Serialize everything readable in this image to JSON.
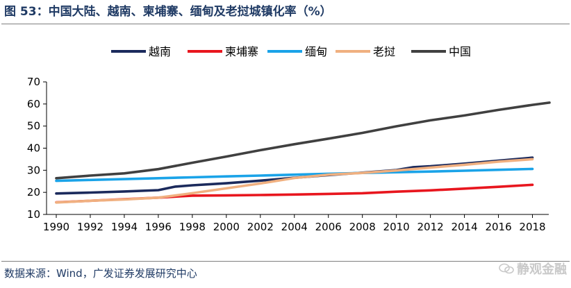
{
  "header": {
    "title": "图 53：中国大陆、越南、柬埔寨、缅甸及老挝城镇化率（%）"
  },
  "footer": {
    "source": "数据来源：Wind，广发证券发展研究中心",
    "watermark": "静观金融"
  },
  "chart_data": {
    "type": "line",
    "title": "",
    "xlabel": "",
    "ylabel": "",
    "ylim": [
      10,
      70
    ],
    "xlim": [
      1990,
      2019
    ],
    "yticks": [
      10,
      20,
      30,
      40,
      50,
      60,
      70
    ],
    "xticks": [
      1990,
      1992,
      1994,
      1996,
      1998,
      2000,
      2002,
      2004,
      2006,
      2008,
      2010,
      2012,
      2014,
      2016,
      2018
    ],
    "grid": false,
    "legend_position": "top",
    "series": [
      {
        "name": "越南",
        "color": "#1b2a5c",
        "x": [
          1990,
          1992,
          1994,
          1996,
          1997,
          1998,
          2000,
          2002,
          2004,
          2006,
          2008,
          2010,
          2011,
          2012,
          2014,
          2016,
          2018
        ],
        "y": [
          19.5,
          19.9,
          20.4,
          21.0,
          22.6,
          23.2,
          24.1,
          25.3,
          26.6,
          27.8,
          28.9,
          30.1,
          31.4,
          31.8,
          33.0,
          34.3,
          35.7
        ]
      },
      {
        "name": "柬埔寨",
        "color": "#e8161e",
        "x": [
          1990,
          1992,
          1994,
          1996,
          1998,
          2000,
          2002,
          2004,
          2006,
          2008,
          2010,
          2012,
          2014,
          2016,
          2018
        ],
        "y": [
          15.5,
          16.2,
          16.9,
          17.6,
          18.5,
          18.6,
          18.8,
          19.0,
          19.3,
          19.6,
          20.3,
          20.9,
          21.7,
          22.5,
          23.4
        ]
      },
      {
        "name": "缅甸",
        "color": "#1aa3e8",
        "x": [
          1990,
          1992,
          1994,
          1996,
          1998,
          2000,
          2002,
          2004,
          2006,
          2008,
          2010,
          2012,
          2014,
          2016,
          2018
        ],
        "y": [
          25.2,
          25.6,
          26.0,
          26.4,
          26.8,
          27.2,
          27.6,
          28.0,
          28.4,
          28.8,
          29.1,
          29.4,
          29.8,
          30.2,
          30.6
        ]
      },
      {
        "name": "老挝",
        "color": "#f0b080",
        "x": [
          1990,
          1992,
          1994,
          1996,
          1998,
          2000,
          2002,
          2004,
          2006,
          2008,
          2010,
          2012,
          2014,
          2016,
          2018
        ],
        "y": [
          15.4,
          16.2,
          16.8,
          17.6,
          19.6,
          21.8,
          24.0,
          26.5,
          28.0,
          28.8,
          29.9,
          31.2,
          32.5,
          33.9,
          35.0
        ]
      },
      {
        "name": "中国",
        "color": "#404040",
        "x": [
          1990,
          1992,
          1994,
          1996,
          1998,
          2000,
          2002,
          2004,
          2006,
          2008,
          2010,
          2012,
          2014,
          2016,
          2018,
          2019
        ],
        "y": [
          26.4,
          27.6,
          28.6,
          30.5,
          33.4,
          36.2,
          39.1,
          41.8,
          44.3,
          46.9,
          49.9,
          52.6,
          54.8,
          57.3,
          59.6,
          60.6
        ]
      }
    ]
  }
}
